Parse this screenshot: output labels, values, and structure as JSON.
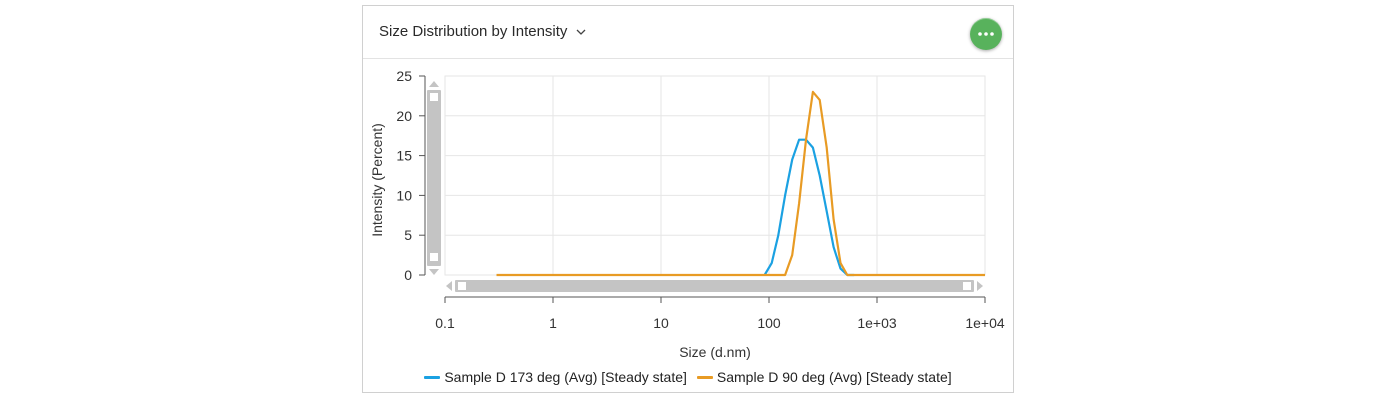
{
  "header": {
    "title": "Size Distribution by Intensity",
    "more_icon": "ellipsis-icon",
    "dropdown_icon": "chevron-down-icon"
  },
  "colors": {
    "series1": "#1ba1e2",
    "series2": "#e89b24",
    "grid": "#e6e6e6",
    "scrollbar": "#c4c4c4",
    "more_button": "#58b25c"
  },
  "chart_data": {
    "type": "line",
    "title": "",
    "xlabel": "Size (d.nm)",
    "ylabel": "Intensity (Percent)",
    "x_scale": "log",
    "xlim": [
      0.1,
      10000
    ],
    "ylim": [
      0,
      25
    ],
    "x_ticks": [
      "0.1",
      "1",
      "10",
      "100",
      "1e+03",
      "1e+04"
    ],
    "y_ticks": [
      "0",
      "5",
      "10",
      "15",
      "20",
      "25"
    ],
    "grid": true,
    "legend_position": "bottom",
    "series": [
      {
        "name": "Sample D 173 deg (Avg) [Steady state]",
        "color": "#1ba1e2",
        "x": [
          91,
          106,
          122,
          141,
          164,
          190,
          220,
          255,
          295,
          342,
          396,
          459,
          531,
          615
        ],
        "y": [
          0,
          1.5,
          5,
          10,
          14.5,
          17,
          17,
          16,
          12.5,
          8,
          3.5,
          0.8,
          0,
          0
        ]
      },
      {
        "name": "Sample D 90 deg (Avg) [Steady state]",
        "color": "#e89b24",
        "x": [
          0.3,
          141,
          164,
          190,
          220,
          255,
          295,
          342,
          396,
          459,
          531,
          615,
          10000
        ],
        "y": [
          0,
          0,
          2.5,
          9,
          17,
          23,
          22,
          16,
          7,
          1.5,
          0,
          0,
          0
        ]
      }
    ]
  }
}
